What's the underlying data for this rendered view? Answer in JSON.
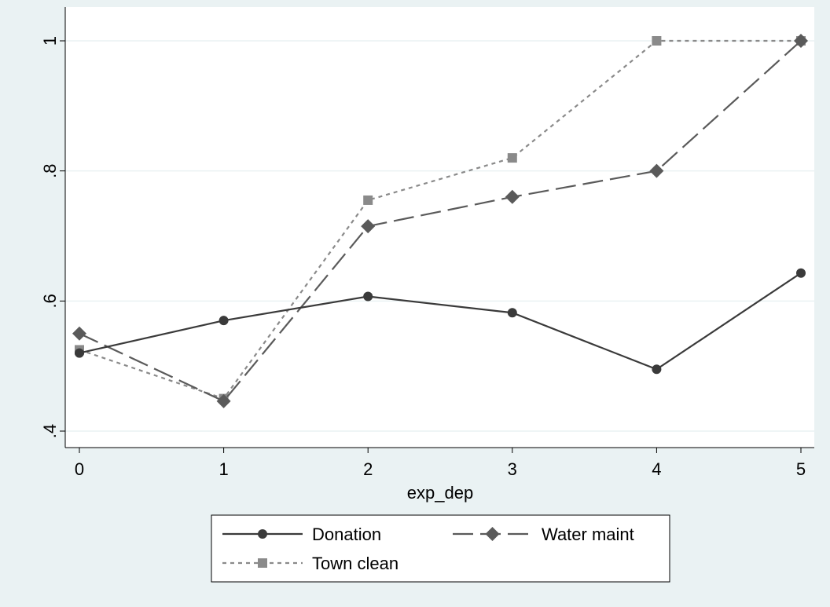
{
  "chart_data": {
    "type": "line",
    "title": "",
    "xlabel": "exp_dep",
    "ylabel": "",
    "x": [
      0,
      1,
      2,
      3,
      4,
      5
    ],
    "xlim": [
      0,
      5
    ],
    "ylim": [
      0.4,
      1.0
    ],
    "xticks": [
      0,
      1,
      2,
      3,
      4,
      5
    ],
    "xtick_labels": [
      "0",
      "1",
      "2",
      "3",
      "4",
      "5"
    ],
    "yticks": [
      0.4,
      0.6,
      0.8,
      1.0
    ],
    "ytick_labels": [
      ".4",
      ".6",
      ".8",
      "1"
    ],
    "grid": true,
    "legend_position": "bottom",
    "series": [
      {
        "name": "Donation",
        "values": [
          0.52,
          0.57,
          0.607,
          0.582,
          0.495,
          0.643
        ],
        "color": "#3a3a3a",
        "marker": "circle",
        "dash": "solid"
      },
      {
        "name": "Water maint",
        "values": [
          0.55,
          0.446,
          0.715,
          0.76,
          0.8,
          1.0
        ],
        "color": "#5a5a5a",
        "marker": "diamond",
        "dash": "longdash"
      },
      {
        "name": "Town clean",
        "values": [
          0.525,
          0.45,
          0.755,
          0.82,
          1.0,
          1.0
        ],
        "color": "#8a8a8a",
        "marker": "square",
        "dash": "dotted"
      }
    ]
  },
  "colors": {
    "outer_background": "#eaf2f3",
    "plot_background": "#ffffff",
    "grid": "#eaf2f3",
    "axis": "#000000"
  }
}
